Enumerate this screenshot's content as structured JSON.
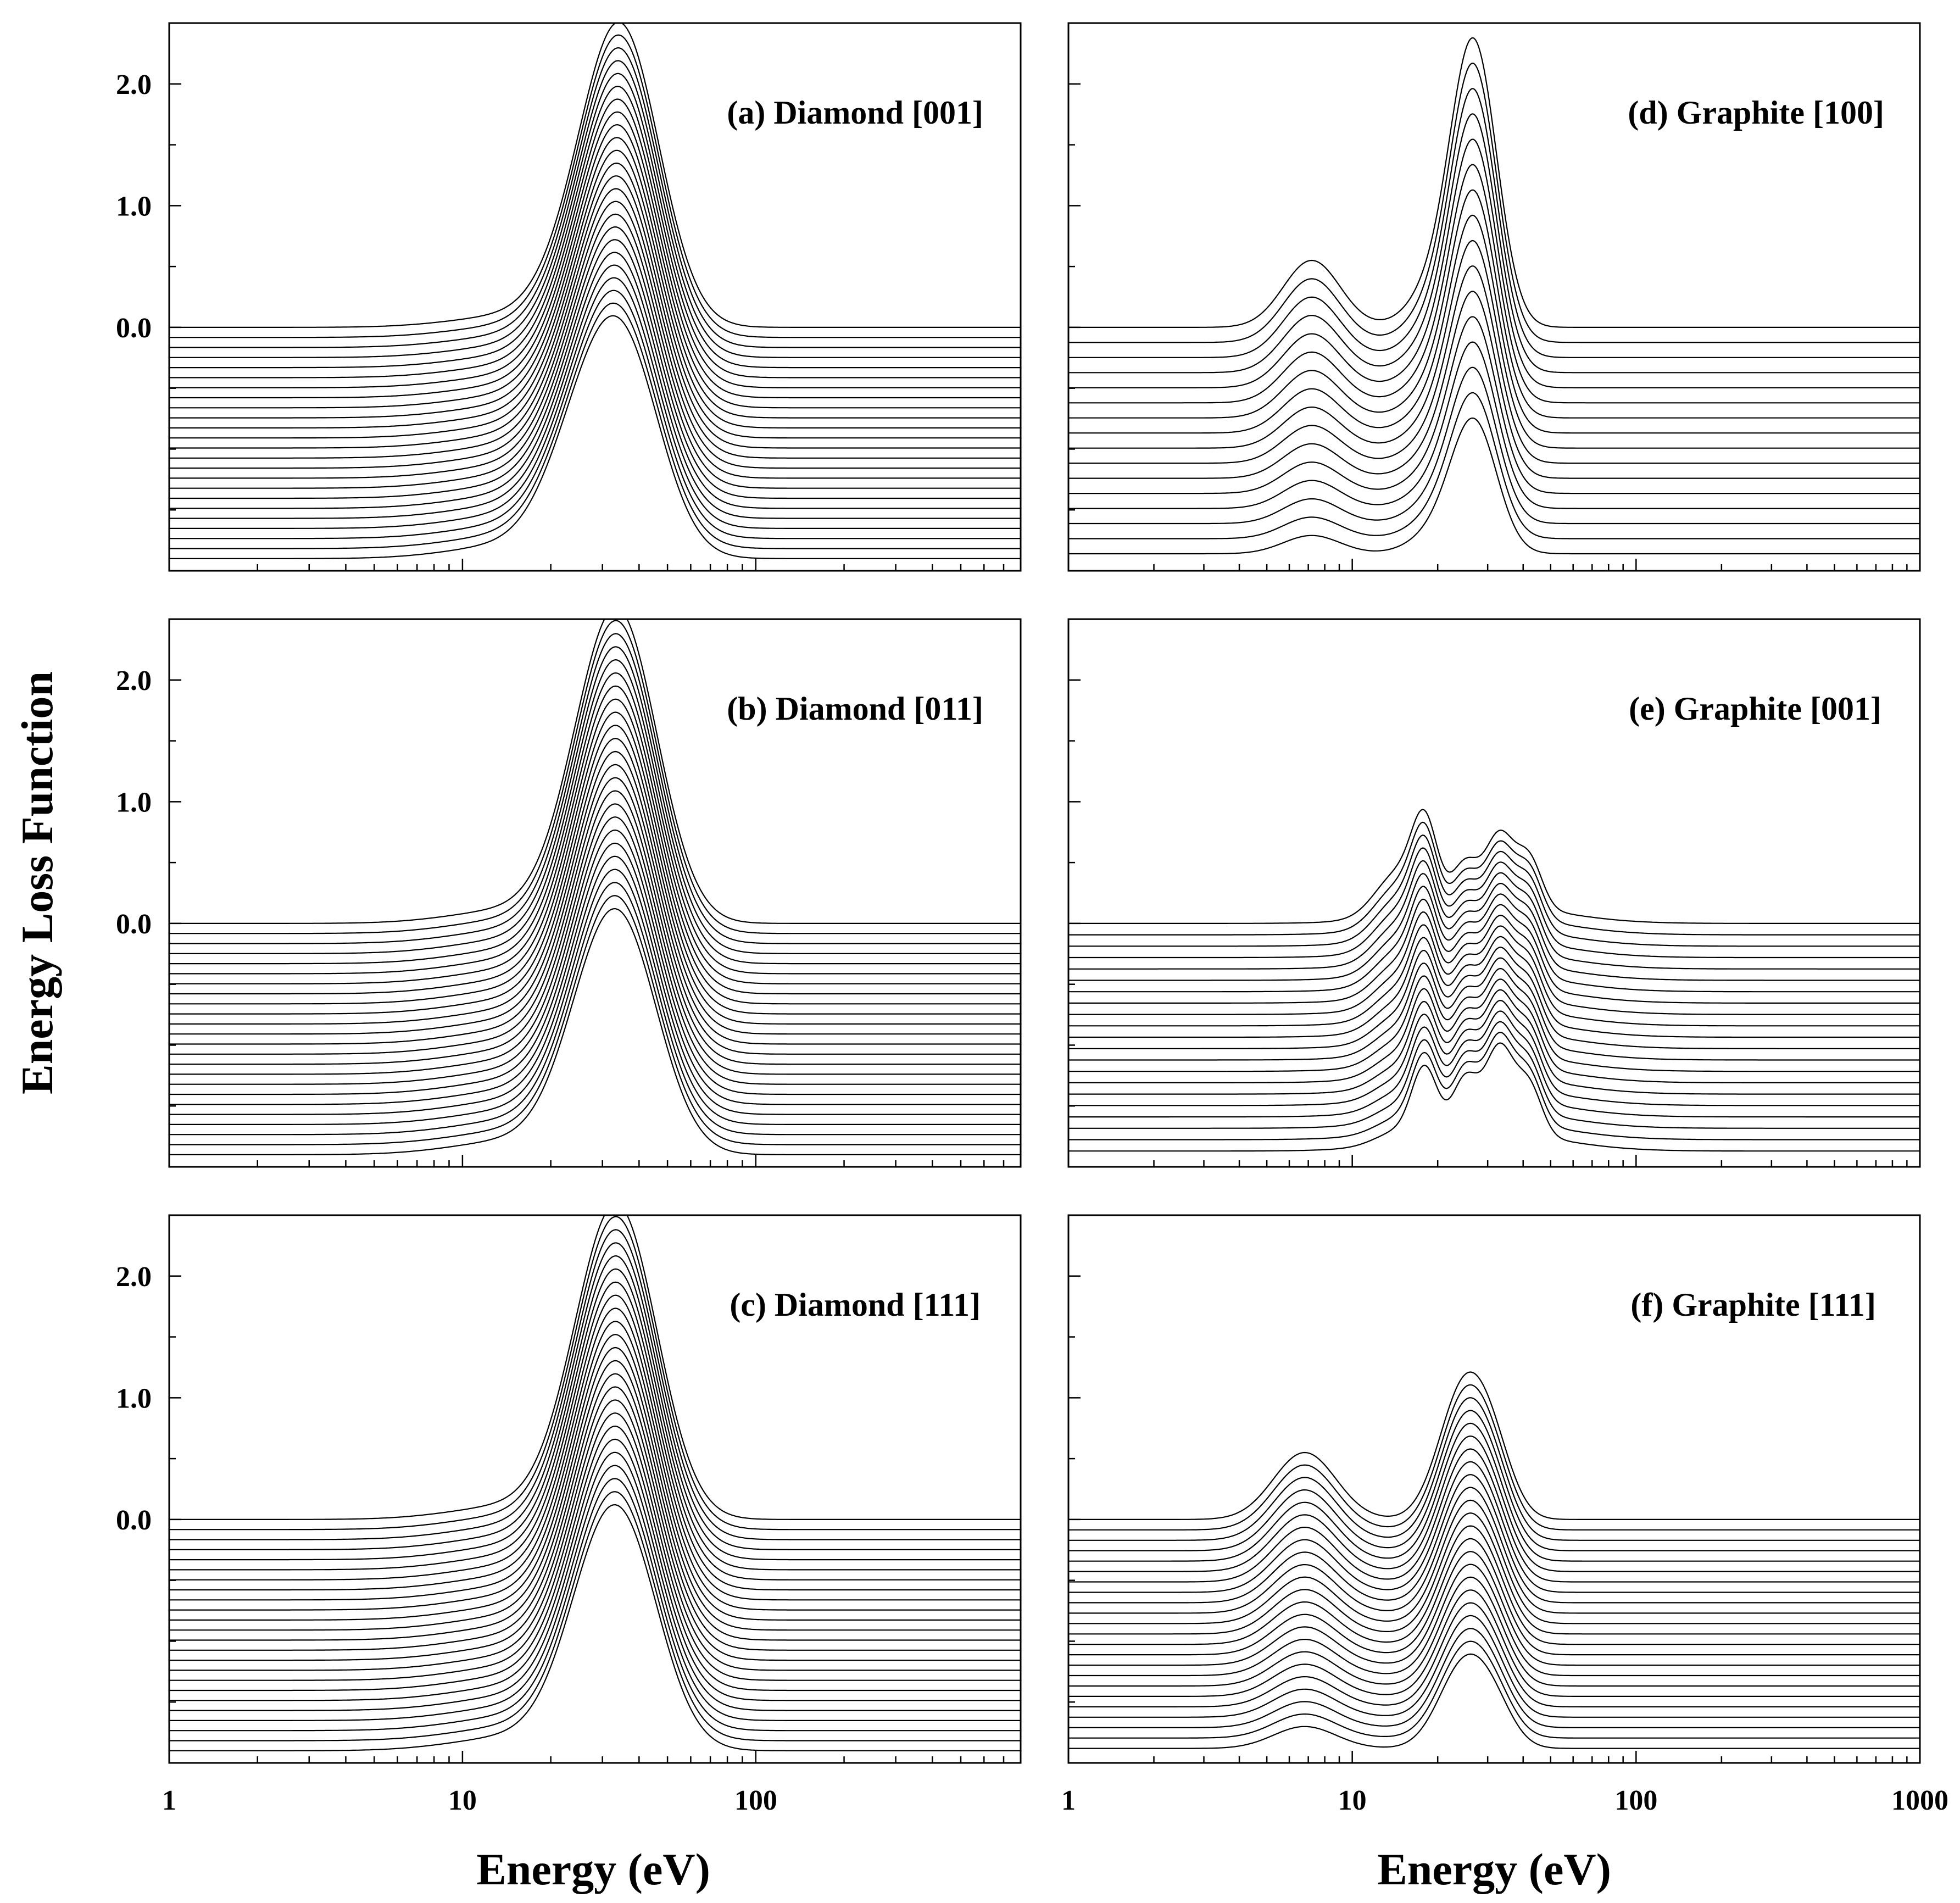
{
  "figure": {
    "y_axis_title": "Energy Loss Function",
    "x_axis_title_left": "Energy (eV)",
    "x_axis_title_right": "Energy (eV)"
  },
  "chart_data": [
    {
      "type": "line",
      "id": "a",
      "title": "(a) Diamond [001]",
      "xlabel": "Energy (eV)",
      "ylabel": "Energy Loss Function",
      "xscale": "log",
      "xlim": [
        1,
        800
      ],
      "ylim": [
        -2.0,
        2.5
      ],
      "yticks": [
        0,
        1,
        2
      ],
      "ytick_labels": [
        "0.0",
        "1.0",
        "2.0"
      ],
      "xticks": [
        1,
        10,
        100
      ],
      "xtick_labels": [
        "1",
        "10",
        "100"
      ],
      "series_count": 24,
      "offset_step": -0.0826,
      "peaks": [
        {
          "energy_eV": 35,
          "start_height": 2.35,
          "end_height": 1.7,
          "width": 0.13
        },
        {
          "energy_eV": 24,
          "start_height": 0.3,
          "end_height": 0.55,
          "width": 0.12
        },
        {
          "energy_eV": 16,
          "start_height": 0.1,
          "end_height": 0.12,
          "width": 0.22
        }
      ]
    },
    {
      "type": "line",
      "id": "b",
      "title": "(b) Diamond [011]",
      "xlabel": "Energy (eV)",
      "ylabel": "Energy Loss Function",
      "xscale": "log",
      "xlim": [
        1,
        800
      ],
      "ylim": [
        -2.0,
        2.5
      ],
      "yticks": [
        0,
        1,
        2
      ],
      "ytick_labels": [
        "0.0",
        "1.0",
        "2.0"
      ],
      "xticks": [
        1,
        10,
        100
      ],
      "xtick_labels": [
        "1",
        "10",
        "100"
      ],
      "series_count": 24,
      "offset_step": -0.0826,
      "peaks": [
        {
          "energy_eV": 35,
          "start_height": 2.25,
          "end_height": 1.7,
          "width": 0.13
        },
        {
          "energy_eV": 26,
          "start_height": 0.5,
          "end_height": 0.45,
          "width": 0.12
        },
        {
          "energy_eV": 16,
          "start_height": 0.12,
          "end_height": 0.12,
          "width": 0.22
        }
      ]
    },
    {
      "type": "line",
      "id": "c",
      "title": "(c) Diamond [111]",
      "xlabel": "Energy (eV)",
      "ylabel": "Energy Loss Function",
      "xscale": "log",
      "xlim": [
        1,
        800
      ],
      "ylim": [
        -2.0,
        2.5
      ],
      "yticks": [
        0,
        1,
        2
      ],
      "ytick_labels": [
        "0.0",
        "1.0",
        "2.0"
      ],
      "xticks": [
        1,
        10,
        100
      ],
      "xtick_labels": [
        "1",
        "10",
        "100"
      ],
      "series_count": 24,
      "offset_step": -0.0826,
      "peaks": [
        {
          "energy_eV": 35,
          "start_height": 2.25,
          "end_height": 1.7,
          "width": 0.13
        },
        {
          "energy_eV": 26,
          "start_height": 0.5,
          "end_height": 0.45,
          "width": 0.12
        },
        {
          "energy_eV": 16,
          "start_height": 0.12,
          "end_height": 0.12,
          "width": 0.22
        }
      ]
    },
    {
      "type": "line",
      "id": "d",
      "title": "(d) Graphite [100]",
      "xlabel": "Energy (eV)",
      "ylabel": "Energy Loss Function",
      "xscale": "log",
      "xlim": [
        1,
        1000
      ],
      "ylim": [
        -2.0,
        2.5
      ],
      "yticks": [],
      "ytick_labels": [],
      "xticks": [
        1,
        10,
        100,
        1000
      ],
      "xtick_labels": [
        "1",
        "10",
        "100",
        "1000"
      ],
      "series_count": 16,
      "offset_step": -0.124,
      "peaks": [
        {
          "energy_eV": 7.2,
          "start_height": 0.55,
          "end_height": 0.15,
          "width": 0.1
        },
        {
          "energy_eV": 27,
          "start_height": 2.15,
          "end_height": 1.0,
          "width": 0.08
        },
        {
          "energy_eV": 21,
          "start_height": 0.4,
          "end_height": 0.2,
          "width": 0.1
        }
      ]
    },
    {
      "type": "line",
      "id": "e",
      "title": "(e) Graphite [001]",
      "xlabel": "Energy (eV)",
      "ylabel": "Energy Loss Function",
      "xscale": "log",
      "xlim": [
        1,
        1000
      ],
      "ylim": [
        -2.0,
        2.5
      ],
      "yticks": [],
      "ytick_labels": [],
      "xticks": [
        1,
        10,
        100,
        1000
      ],
      "xtick_labels": [
        "1",
        "10",
        "100",
        "1000"
      ],
      "series_count": 21,
      "offset_step": -0.0935,
      "peaks": [
        {
          "energy_eV": 14.5,
          "start_height": 0.35,
          "end_height": 0.1,
          "width": 0.08
        },
        {
          "energy_eV": 18,
          "start_height": 0.65,
          "end_height": 0.55,
          "width": 0.045
        },
        {
          "energy_eV": 25,
          "start_height": 0.35,
          "end_height": 0.45,
          "width": 0.045
        },
        {
          "energy_eV": 33,
          "start_height": 0.58,
          "end_height": 0.7,
          "width": 0.05
        },
        {
          "energy_eV": 42,
          "start_height": 0.4,
          "end_height": 0.4,
          "width": 0.045
        },
        {
          "energy_eV": 30,
          "start_height": 0.15,
          "end_height": 0.15,
          "width": 0.25
        }
      ]
    },
    {
      "type": "line",
      "id": "f",
      "title": "(f) Graphite [111]",
      "xlabel": "Energy (eV)",
      "ylabel": "Energy Loss Function",
      "xscale": "log",
      "xlim": [
        1,
        1000
      ],
      "ylim": [
        -2.0,
        2.5
      ],
      "yticks": [],
      "ytick_labels": [],
      "xticks": [
        1,
        10,
        100,
        1000
      ],
      "xtick_labels": [
        "1",
        "10",
        "100",
        "1000"
      ],
      "series_count": 23,
      "offset_step": -0.0855,
      "peaks": [
        {
          "energy_eV": 6.8,
          "start_height": 0.55,
          "end_height": 0.18,
          "width": 0.11
        },
        {
          "energy_eV": 25,
          "start_height": 1.1,
          "end_height": 0.7,
          "width": 0.09
        },
        {
          "energy_eV": 32,
          "start_height": 0.3,
          "end_height": 0.2,
          "width": 0.07
        }
      ]
    }
  ]
}
